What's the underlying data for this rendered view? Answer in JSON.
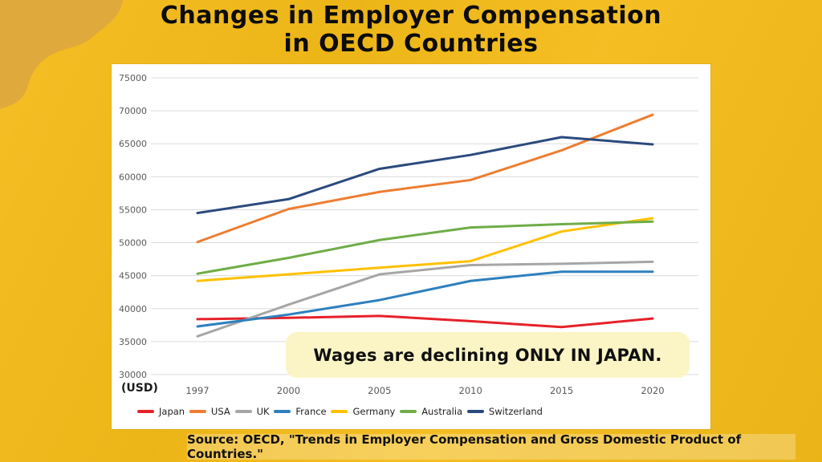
{
  "page": {
    "title_line1": "Changes in Employer Compensation",
    "title_line2": "in OECD Countries",
    "annotation": "Wages are declining ONLY IN JAPAN.",
    "source": "Source: OECD, \"Trends in Employer Compensation and Gross Domestic Product of Countries.\""
  },
  "colors": {
    "background": "#F4BB18",
    "corner_blob": "#E0A93C",
    "panel": "#FFFFFF",
    "gridline": "#DBDBDB",
    "tick_text": "#595959",
    "annotation_bg": "#FBF5C5",
    "title_text": "#0C0C0C"
  },
  "chart_data": {
    "type": "line",
    "title": "Changes in Employer Compensation in OECD Countries",
    "categories": [
      "1997",
      "2000",
      "2005",
      "2010",
      "2015",
      "2020"
    ],
    "xlabel": "",
    "ylabel": "(USD)",
    "ylim": [
      30000,
      75000
    ],
    "y_ticks": [
      30000,
      35000,
      40000,
      45000,
      50000,
      55000,
      60000,
      65000,
      70000,
      75000
    ],
    "grid": true,
    "legend_position": "bottom",
    "series": [
      {
        "name": "Japan",
        "color": "#E62129",
        "values": [
          38400,
          38600,
          38900,
          38100,
          37200,
          38500
        ]
      },
      {
        "name": "USA",
        "color": "#ED7D31",
        "values": [
          50100,
          55100,
          57700,
          59500,
          64000,
          69400
        ]
      },
      {
        "name": "UK",
        "color": "#A6A6A6",
        "values": [
          35800,
          40600,
          45200,
          46600,
          46800,
          47100
        ]
      },
      {
        "name": "France",
        "color": "#2E80BE",
        "values": [
          37300,
          39100,
          41300,
          44200,
          45600,
          45600
        ]
      },
      {
        "name": "Germany",
        "color": "#FFC000",
        "values": [
          44200,
          45200,
          46200,
          47200,
          51700,
          53700
        ]
      },
      {
        "name": "Australia",
        "color": "#6FAD47",
        "values": [
          45300,
          47700,
          50400,
          52300,
          52800,
          53200
        ]
      },
      {
        "name": "Switzerland",
        "color": "#2B4A7D",
        "values": [
          54500,
          56600,
          61200,
          63300,
          66000,
          64900
        ]
      }
    ]
  }
}
